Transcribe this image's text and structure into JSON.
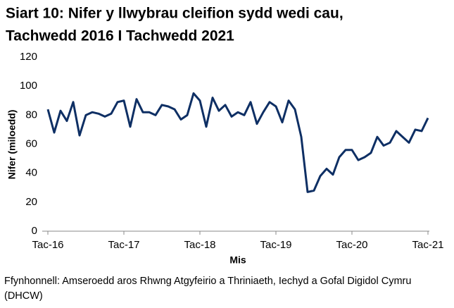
{
  "chart_data": {
    "type": "line",
    "title": [
      "Siart 10: Nifer y llwybrau cleifion sydd wedi cau,",
      "Tachwedd 2016 I Tachwedd 2021"
    ],
    "xlabel": "Mis",
    "ylabel": "Nifer (miloedd)",
    "source": [
      "Ffynhonnell: Amseroedd aros Rhwng Atgyfeirio a Thriniaeth, Iechyd a Gofal Digidol Cymru",
      "(DHCW)"
    ],
    "categories": [
      "Tac-16",
      null,
      null,
      null,
      null,
      null,
      null,
      null,
      null,
      null,
      null,
      null,
      "Tac-17",
      null,
      null,
      null,
      null,
      null,
      null,
      null,
      null,
      null,
      null,
      null,
      "Tac-18",
      null,
      null,
      null,
      null,
      null,
      null,
      null,
      null,
      null,
      null,
      null,
      "Tac-19",
      null,
      null,
      null,
      null,
      null,
      null,
      null,
      null,
      null,
      null,
      null,
      "Tac-20",
      null,
      null,
      null,
      null,
      null,
      null,
      null,
      null,
      null,
      null,
      null,
      "Tac-21"
    ],
    "values": [
      84,
      68,
      83,
      76,
      89,
      66,
      80,
      82,
      81,
      79,
      81,
      89,
      90,
      72,
      91,
      82,
      82,
      80,
      87,
      86,
      84,
      77,
      80,
      95,
      90,
      72,
      92,
      83,
      87,
      79,
      82,
      80,
      89,
      74,
      82,
      89,
      86,
      75,
      90,
      84,
      65,
      27,
      28,
      38,
      43,
      39,
      51,
      56,
      56,
      49,
      51,
      54,
      65,
      59,
      61,
      69,
      65,
      61,
      70,
      69,
      78
    ],
    "color": "#0e2f64",
    "ylim": [
      0,
      120
    ],
    "yticks": [
      0,
      20,
      40,
      60,
      80,
      100,
      120
    ],
    "grid": false
  }
}
